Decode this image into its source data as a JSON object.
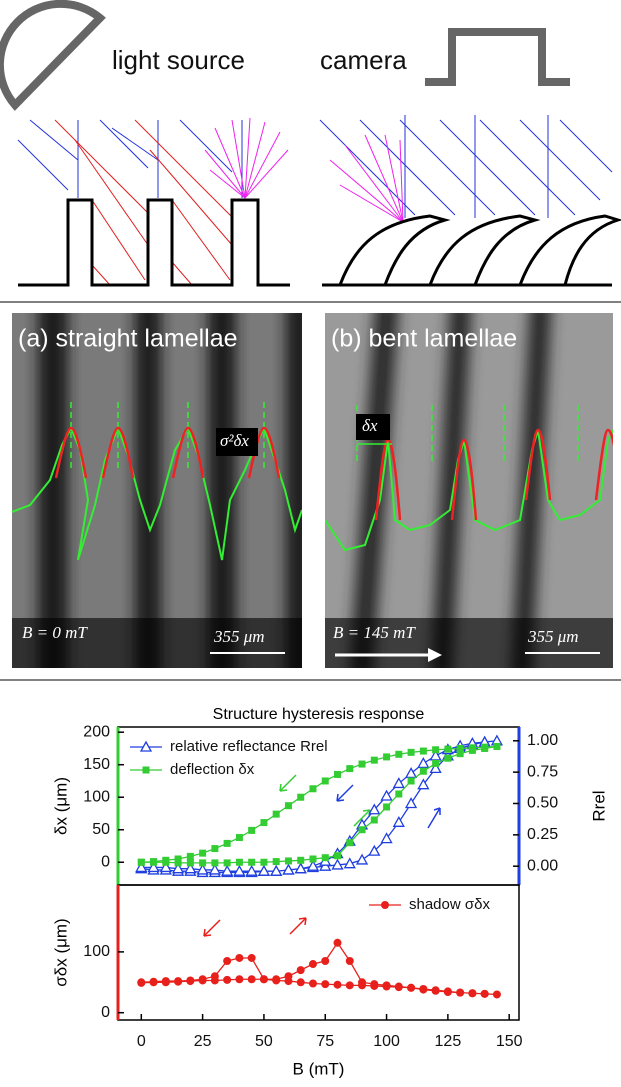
{
  "diagram": {
    "labels": [
      "light source",
      "camera"
    ]
  },
  "panels": [
    {
      "title": "(a) straight lamellae",
      "annotation": "σ²δx",
      "field": "B = 0 mT",
      "scale": "355 μm"
    },
    {
      "title": "(b) bent lamellae",
      "annotation": "δx",
      "field": "B = 145 mT",
      "scale": "355 μm"
    }
  ],
  "chart_data": [
    {
      "type": "line",
      "title": "Structure hysteresis response",
      "ylabel": "δx (μm)",
      "y2label": "Rrel",
      "x": [
        0,
        5,
        10,
        15,
        20,
        25,
        30,
        35,
        40,
        45,
        50,
        55,
        60,
        65,
        70,
        75,
        80,
        85,
        90,
        95,
        100,
        105,
        110,
        115,
        120,
        125,
        130,
        135,
        140,
        145,
        140,
        135,
        130,
        125,
        120,
        115,
        110,
        105,
        100,
        95,
        90,
        85,
        80,
        75,
        70,
        65,
        60,
        55,
        50,
        45,
        40,
        35,
        30,
        25,
        20,
        15,
        10,
        5,
        0
      ],
      "xlim": [
        -9.5,
        154
      ],
      "ylim": [
        -35,
        208
      ],
      "yticks": [
        0,
        50,
        100,
        150,
        200
      ],
      "y2lim": [
        -0.15,
        1.11
      ],
      "y2ticks": [
        {
          "value": 0,
          "label": "0.00"
        },
        0.25,
        {
          "value": 0.5,
          "label": "0.50"
        },
        0.75,
        {
          "value": 1,
          "label": "1.00"
        }
      ],
      "legend": "upper left",
      "spine_colors": {
        "left": "#33cc33",
        "right": "#1f3fe0"
      },
      "series": [
        {
          "name": "relative reflectance Rrel",
          "color": "#1f3fe0",
          "marker": "triangle",
          "axis": "y2",
          "values": [
            -0.02,
            -0.03,
            -0.03,
            -0.04,
            -0.04,
            -0.05,
            -0.05,
            -0.05,
            -0.05,
            -0.05,
            -0.04,
            -0.04,
            -0.03,
            -0.02,
            -0.01,
            0,
            0.01,
            0.02,
            0.05,
            0.12,
            0.22,
            0.35,
            0.5,
            0.65,
            0.78,
            0.88,
            0.94,
            0.97,
            0.99,
            1.0,
            0.99,
            0.98,
            0.96,
            0.93,
            0.88,
            0.82,
            0.74,
            0.66,
            0.56,
            0.45,
            0.33,
            0.2,
            0.1,
            0.04,
            0.0,
            -0.02,
            -0.03,
            -0.04,
            -0.04,
            -0.04,
            -0.04,
            -0.04,
            -0.03,
            -0.03,
            -0.02,
            -0.02,
            -0.01,
            -0.01,
            -0.01
          ]
        },
        {
          "name": "deflection δx",
          "color": "#33cc33",
          "marker": "square",
          "values": [
            0,
            0,
            0,
            -1,
            -1,
            -1,
            -1,
            -1,
            0,
            0,
            0,
            1,
            2,
            3,
            5,
            7,
            10,
            30,
            50,
            65,
            85,
            105,
            125,
            140,
            152,
            160,
            167,
            172,
            175,
            178,
            177,
            176,
            175,
            174,
            173,
            171,
            169,
            166,
            162,
            157,
            151,
            144,
            135,
            125,
            113,
            100,
            87,
            74,
            61,
            49,
            38,
            29,
            21,
            14,
            9,
            5,
            3,
            1,
            0
          ]
        }
      ]
    },
    {
      "type": "line",
      "ylabel": "σδx (μm)",
      "xlabel": "B (mT)",
      "x": [
        0,
        5,
        10,
        15,
        20,
        25,
        30,
        35,
        40,
        45,
        50,
        55,
        60,
        65,
        70,
        75,
        80,
        85,
        90,
        95,
        100,
        105,
        110,
        115,
        120,
        125,
        130,
        135,
        140,
        145,
        140,
        135,
        130,
        125,
        120,
        115,
        110,
        105,
        100,
        95,
        90,
        85,
        80,
        75,
        70,
        65,
        60,
        55,
        50,
        45,
        40,
        35,
        30,
        25,
        20,
        15,
        10,
        5,
        0
      ],
      "xlim": [
        -9.5,
        154
      ],
      "xticks": [
        0,
        25,
        50,
        75,
        100,
        125,
        150
      ],
      "ylim": [
        -12,
        210
      ],
      "yticks": [
        0,
        100
      ],
      "legend": "upper right",
      "spine_colors": {
        "left": "#e8201c"
      },
      "series": [
        {
          "name": "shadow σδx",
          "color": "#e8201c",
          "marker": "circle",
          "values": [
            50,
            51,
            52,
            52,
            53,
            55,
            60,
            85,
            90,
            90,
            55,
            55,
            60,
            70,
            80,
            85,
            115,
            85,
            50,
            47,
            45,
            43,
            41,
            38,
            36,
            34,
            33,
            32,
            31,
            30,
            31,
            32,
            33,
            35,
            37,
            39,
            41,
            42,
            43,
            44,
            45,
            45,
            46,
            47,
            48,
            50,
            52,
            53,
            55,
            55,
            55,
            54,
            53,
            53,
            52,
            51,
            50,
            50,
            49
          ]
        }
      ]
    }
  ]
}
